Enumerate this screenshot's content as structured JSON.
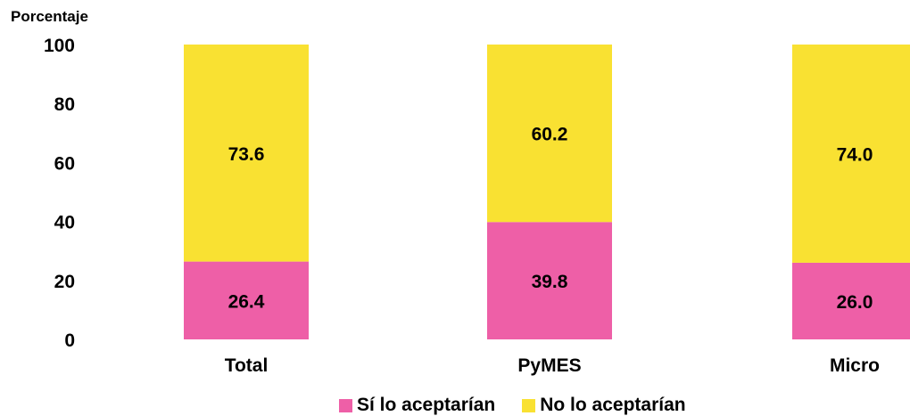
{
  "chart_data": {
    "type": "bar",
    "stacked": true,
    "ylabel": "Porcentaje",
    "ylim": [
      0,
      100
    ],
    "yticks": [
      0,
      20,
      40,
      60,
      80,
      100
    ],
    "categories": [
      "Total",
      "PyMES",
      "Micro"
    ],
    "series": [
      {
        "name": "Sí lo aceptarían",
        "color": "#EE5FA7",
        "values": [
          26.4,
          39.8,
          26.0
        ],
        "labels": [
          "26.4",
          "39.8",
          "26.0"
        ]
      },
      {
        "name": "No lo aceptarían",
        "color": "#F9E132",
        "values": [
          73.6,
          60.2,
          74.0
        ],
        "labels": [
          "73.6",
          "60.2",
          "74.0"
        ]
      }
    ],
    "grid": false,
    "legend": "bottom"
  }
}
